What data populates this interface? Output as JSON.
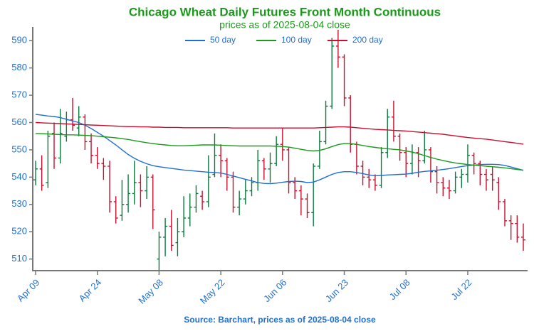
{
  "chart_data": {
    "type": "ohlc",
    "title": "Chicago Wheat Daily Futures Front Month Continuous",
    "subtitle": "prices as of 2025-08-04 close",
    "source": "Source: Barchart, prices as of 2025-08-04 close",
    "categories": [
      "Apr 09",
      null,
      null,
      null,
      null,
      null,
      null,
      null,
      null,
      null,
      "Apr 24",
      null,
      null,
      null,
      null,
      null,
      null,
      null,
      null,
      null,
      "May 08",
      null,
      null,
      null,
      null,
      null,
      null,
      null,
      null,
      null,
      "May 22",
      null,
      null,
      null,
      null,
      null,
      null,
      null,
      null,
      null,
      "Jun 06",
      null,
      null,
      null,
      null,
      null,
      null,
      null,
      null,
      null,
      "Jun 23",
      null,
      null,
      null,
      null,
      null,
      null,
      null,
      null,
      null,
      "Jul 08",
      null,
      null,
      null,
      null,
      null,
      null,
      null,
      null,
      null,
      "Jul 22",
      null,
      null,
      null,
      null,
      null,
      null,
      null,
      null,
      null
    ],
    "open": [
      539,
      543,
      538,
      556,
      547,
      555,
      561,
      558,
      562,
      553,
      548,
      545,
      544,
      531,
      526,
      530,
      534,
      538,
      535,
      540,
      510,
      518,
      522,
      516,
      520,
      525,
      529,
      533,
      531,
      541,
      548,
      546,
      540,
      529,
      532,
      535,
      538,
      546,
      543,
      545,
      552,
      550,
      538,
      535,
      532,
      527,
      544,
      553,
      566,
      588,
      584,
      569,
      552,
      544,
      540,
      539,
      537,
      549,
      562,
      555,
      549,
      545,
      549,
      546,
      550,
      542,
      538,
      536,
      535,
      540,
      541,
      548,
      545,
      541,
      541,
      538,
      531,
      524,
      523,
      518
    ],
    "high": [
      546,
      548,
      557,
      560,
      565,
      564,
      569,
      566,
      563,
      556,
      551,
      547,
      546,
      533,
      539,
      541,
      546,
      541,
      544,
      541,
      520,
      525,
      528,
      525,
      533,
      534,
      537,
      535,
      548,
      556,
      552,
      547,
      542,
      535,
      539,
      540,
      550,
      547,
      549,
      555,
      558,
      551,
      540,
      537,
      534,
      545,
      557,
      568,
      591,
      594,
      585,
      570,
      553,
      546,
      543,
      541,
      551,
      565,
      568,
      556,
      551,
      552,
      551,
      557,
      551,
      544,
      540,
      539,
      542,
      543,
      552,
      549,
      546,
      543,
      544,
      540,
      532,
      526,
      526,
      523
    ],
    "low": [
      537,
      535,
      536,
      543,
      545,
      553,
      557,
      555,
      550,
      545,
      543,
      539,
      527,
      523,
      524,
      527,
      530,
      529,
      532,
      521,
      506,
      511,
      513,
      511,
      518,
      522,
      527,
      528,
      529,
      540,
      540,
      535,
      527,
      526,
      530,
      533,
      535,
      539,
      538,
      544,
      546,
      534,
      532,
      526,
      525,
      522,
      543,
      552,
      565,
      580,
      566,
      549,
      541,
      537,
      536,
      535,
      536,
      547,
      553,
      546,
      540,
      541,
      540,
      545,
      538,
      534,
      533,
      532,
      534,
      536,
      538,
      541,
      537,
      535,
      535,
      528,
      522,
      517,
      516,
      513
    ],
    "close": [
      543,
      537,
      555,
      547,
      556,
      561,
      559,
      562,
      553,
      548,
      545,
      544,
      531,
      525,
      530,
      534,
      538,
      535,
      540,
      528,
      518,
      522,
      515,
      520,
      525,
      529,
      534,
      531,
      540,
      548,
      546,
      540,
      529,
      532,
      535,
      538,
      546,
      543,
      545,
      552,
      550,
      538,
      535,
      532,
      527,
      544,
      553,
      566,
      588,
      584,
      569,
      552,
      544,
      540,
      539,
      537,
      549,
      562,
      555,
      549,
      545,
      549,
      546,
      550,
      542,
      538,
      536,
      535,
      540,
      541,
      548,
      545,
      541,
      539,
      539,
      531,
      524,
      523,
      518,
      517
    ],
    "up_color": "#0b7a3e",
    "down_color": "#c8102e",
    "series": [
      {
        "name": "50 day",
        "color": "#1f6fd1",
        "values": [
          563.0,
          562.7,
          562.4,
          562.2,
          561.8,
          561.2,
          560.6,
          560.0,
          559.0,
          557.8,
          556.4,
          555.0,
          553.4,
          551.8,
          550.0,
          548.3,
          546.9,
          545.8,
          544.9,
          544.2,
          543.8,
          543.5,
          543.2,
          542.9,
          542.6,
          542.4,
          542.2,
          542.0,
          541.8,
          541.7,
          541.5,
          541.0,
          540.4,
          539.8,
          539.2,
          538.6,
          538.0,
          537.7,
          537.6,
          537.8,
          538.1,
          538.4,
          538.5,
          538.4,
          538.0,
          538.2,
          539.0,
          540.0,
          541.0,
          541.7,
          542.0,
          542.0,
          541.7,
          541.3,
          540.8,
          540.5,
          540.6,
          540.8,
          540.9,
          541.0,
          541.1,
          541.4,
          541.8,
          542.1,
          542.3,
          542.5,
          542.8,
          543.1,
          543.5,
          543.9,
          544.2,
          544.4,
          544.6,
          544.7,
          544.7,
          544.6,
          544.3,
          543.7,
          543.1,
          542.5
        ]
      },
      {
        "name": "100 day",
        "color": "#1a9a1a",
        "values": [
          556.0,
          555.9,
          555.8,
          555.7,
          555.6,
          555.5,
          555.5,
          555.4,
          555.3,
          555.2,
          555.0,
          554.8,
          554.6,
          554.4,
          554.1,
          553.8,
          553.4,
          553.0,
          552.6,
          552.3,
          552.0,
          551.8,
          551.6,
          551.5,
          551.5,
          551.6,
          551.7,
          551.8,
          551.8,
          551.8,
          551.7,
          551.6,
          551.5,
          551.4,
          551.4,
          551.4,
          551.4,
          551.4,
          551.4,
          551.3,
          551.2,
          551.0,
          550.6,
          550.2,
          549.8,
          549.6,
          549.8,
          550.4,
          551.2,
          551.9,
          552.3,
          552.3,
          552.0,
          551.6,
          551.2,
          550.9,
          550.6,
          550.4,
          550.2,
          550.0,
          549.6,
          549.2,
          548.6,
          547.9,
          547.2,
          546.6,
          546.1,
          545.6,
          545.2,
          544.9,
          544.6,
          544.4,
          544.2,
          544.0,
          543.8,
          543.6,
          543.4,
          543.1,
          542.8,
          542.5
        ]
      },
      {
        "name": "200 day",
        "color": "#c8102e",
        "values": [
          560.0,
          559.9,
          559.8,
          559.7,
          559.6,
          559.5,
          559.4,
          559.3,
          559.2,
          559.1,
          559.0,
          558.9,
          558.8,
          558.7,
          558.6,
          558.5,
          558.5,
          558.4,
          558.4,
          558.3,
          558.3,
          558.2,
          558.2,
          558.2,
          558.1,
          558.1,
          558.1,
          558.1,
          558.1,
          558.1,
          558.1,
          558.1,
          558.0,
          558.0,
          558.0,
          558.0,
          558.0,
          558.0,
          558.0,
          558.0,
          558.0,
          558.0,
          558.0,
          558.0,
          558.0,
          558.0,
          558.1,
          558.2,
          558.3,
          558.4,
          558.4,
          558.3,
          558.1,
          557.9,
          557.7,
          557.5,
          557.4,
          557.3,
          557.1,
          557.0,
          556.9,
          556.7,
          556.5,
          556.3,
          556.1,
          555.9,
          555.7,
          555.4,
          555.1,
          554.8,
          554.5,
          554.3,
          554.1,
          553.9,
          553.6,
          553.3,
          553.0,
          552.7,
          552.4,
          552.1
        ]
      }
    ],
    "ylim": [
      506,
      595
    ],
    "yticks": [
      510,
      520,
      530,
      540,
      550,
      560,
      570,
      580,
      590
    ],
    "legend": "top",
    "grid": false
  }
}
